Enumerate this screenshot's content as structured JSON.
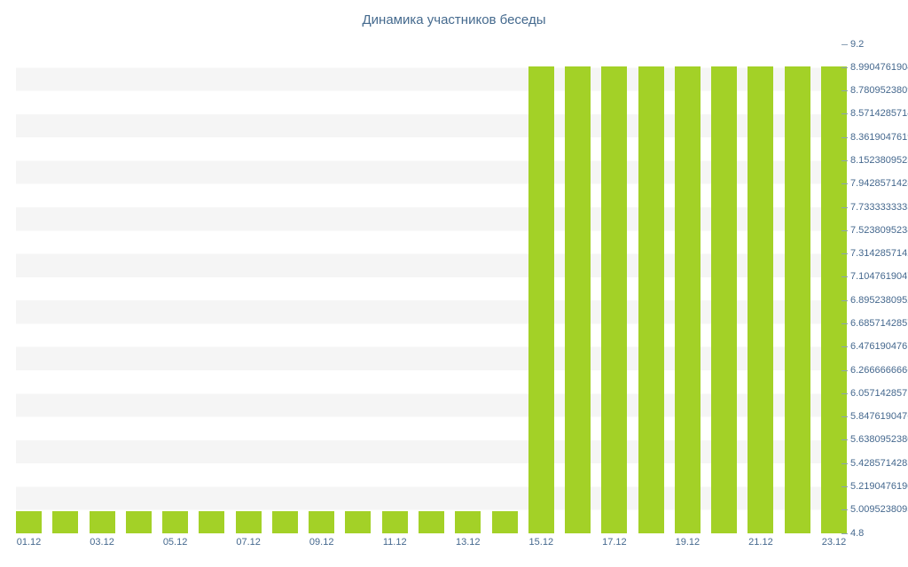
{
  "colors": {
    "bar": "#a3d127",
    "stripe": "#f5f5f5",
    "title_text": "#456a8e",
    "axis_text": "#45688e",
    "tick": "#8ba1b6"
  },
  "chart_data": {
    "type": "bar",
    "title": "Динамика участников беседы",
    "categories": [
      "01.12",
      "02.12",
      "03.12",
      "04.12",
      "05.12",
      "06.12",
      "07.12",
      "08.12",
      "09.12",
      "10.12",
      "11.12",
      "12.12",
      "13.12",
      "14.12",
      "15.12",
      "16.12",
      "17.12",
      "18.12",
      "19.12",
      "20.12",
      "21.12",
      "22.12",
      "23.12"
    ],
    "values": [
      5,
      5,
      5,
      5,
      5,
      5,
      5,
      5,
      5,
      5,
      5,
      5,
      5,
      5,
      9,
      9,
      9,
      9,
      9,
      9,
      9,
      9,
      9
    ],
    "ylim": [
      4.8,
      9.2
    ],
    "xlabel": "",
    "ylabel": "",
    "grid": "horizontal-stripes",
    "legend": "none",
    "y_ticks": [
      "9.2",
      "8.990476190476190",
      "8.780952380952381",
      "8.571428571428571",
      "8.361904761904762",
      "8.152380952380952",
      "7.942857142857143",
      "7.733333333333333",
      "7.523809523809524",
      "7.314285714285714",
      "7.104761904761905",
      "6.895238095238095",
      "6.685714285714286",
      "6.476190476190476",
      "6.266666666666667",
      "6.057142857142857",
      "5.847619047619048",
      "5.638095238095238",
      "5.428571428571429",
      "5.219047619047619",
      "5.009523809523810",
      "4.8"
    ],
    "x_tick_labels": [
      "01.12",
      "03.12",
      "05.12",
      "07.12",
      "09.12",
      "11.12",
      "13.12",
      "15.12",
      "17.12",
      "19.12",
      "21.12",
      "23.12"
    ]
  }
}
